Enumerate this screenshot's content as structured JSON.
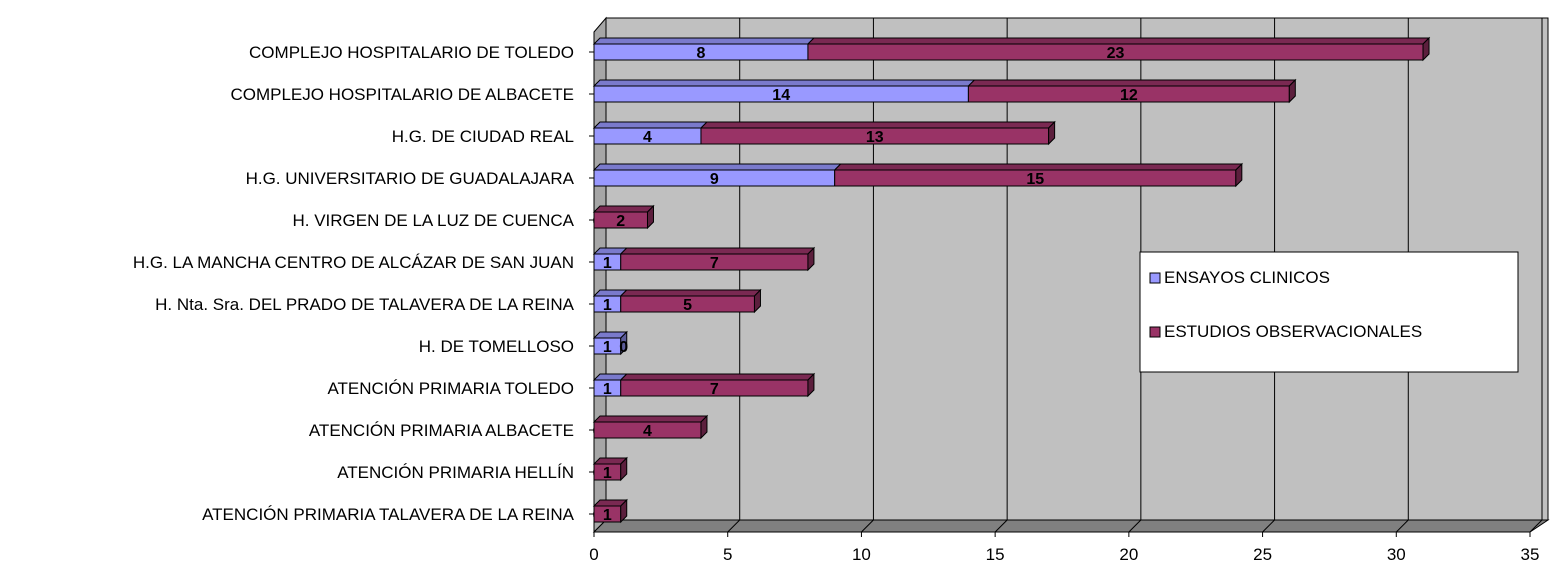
{
  "chart_data": {
    "type": "bar",
    "orientation": "horizontal",
    "stacked": true,
    "three_d": true,
    "categories": [
      "COMPLEJO HOSPITALARIO DE TOLEDO",
      "COMPLEJO HOSPITALARIO  DE ALBACETE",
      "H.G. DE CIUDAD REAL",
      "H.G. UNIVERSITARIO DE GUADALAJARA",
      "H.  VIRGEN DE LA LUZ DE CUENCA",
      "H.G. LA MANCHA CENTRO DE ALCÁZAR DE SAN JUAN",
      "H. Nta. Sra. DEL PRADO DE TALAVERA DE LA REINA",
      "H. DE TOMELLOSO",
      "ATENCIÓN PRIMARIA  TOLEDO",
      "ATENCIÓN PRIMARIA  ALBACETE",
      "ATENCIÓN PRIMARIA  HELLÍN",
      "ATENCIÓN PRIMARIA TALAVERA DE LA REINA"
    ],
    "series": [
      {
        "name": "ENSAYOS CLINICOS",
        "color": "#9999FF",
        "values": [
          8,
          14,
          4,
          9,
          0,
          1,
          1,
          1,
          1,
          0,
          0,
          0
        ]
      },
      {
        "name": "ESTUDIOS OBSERVACIONALES",
        "color": "#993366",
        "values": [
          23,
          12,
          13,
          15,
          2,
          7,
          5,
          0,
          7,
          4,
          1,
          1
        ]
      }
    ],
    "xlim": [
      0,
      35
    ],
    "xticks": [
      0,
      5,
      10,
      15,
      20,
      25,
      30,
      35
    ],
    "grid": true,
    "legend_position": "right",
    "background_color": "#C0C0C0"
  }
}
